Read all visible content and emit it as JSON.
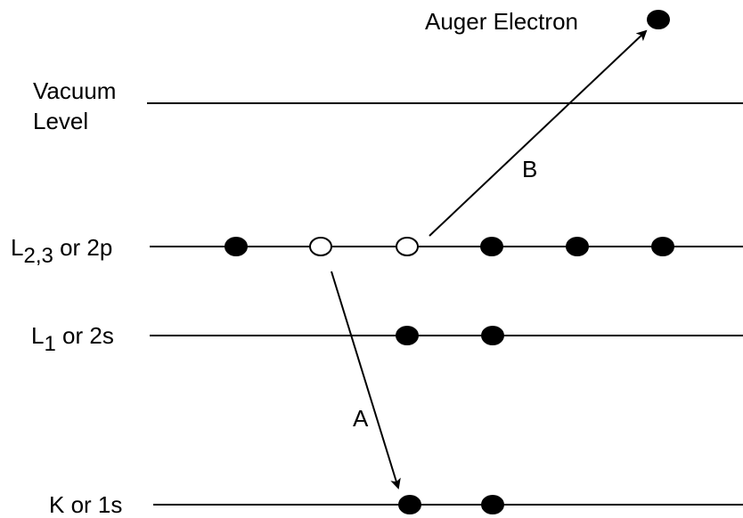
{
  "auger_label": "Auger Electron",
  "levels": [
    {
      "lines": [
        "Vacuum",
        "Level"
      ]
    },
    {
      "main": "L",
      "sub": "2,3",
      "suffix": " or 2p"
    },
    {
      "main": "L",
      "sub": "1",
      "suffix": " or 2s"
    },
    {
      "main": "K or 1s"
    }
  ],
  "arrows": [
    {
      "label": "B"
    },
    {
      "label": "A"
    }
  ]
}
